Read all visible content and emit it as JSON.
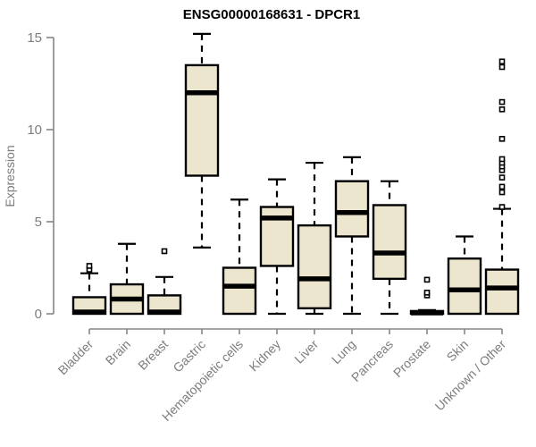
{
  "chart_data": {
    "type": "boxplot",
    "title": "ENSG00000168631 - DPCR1",
    "ylabel": "Expression",
    "xlabel": "",
    "ylim": [
      0,
      15
    ],
    "yticks": [
      0,
      5,
      10,
      15
    ],
    "grid": false,
    "legend": "none",
    "categories": [
      "Bladder",
      "Brain",
      "Breast",
      "Gastric",
      "Hematopoietic cells",
      "Kidney",
      "Liver",
      "Lung",
      "Pancreas",
      "Prostate",
      "Skin",
      "Unknown / Other"
    ],
    "series": [
      {
        "name": "Bladder",
        "whisker_low": 0,
        "q1": 0,
        "median": 0.1,
        "q3": 0.9,
        "whisker_high": 2.2,
        "outliers": [
          2.4,
          2.6
        ]
      },
      {
        "name": "Brain",
        "whisker_low": 0,
        "q1": 0,
        "median": 0.8,
        "q3": 1.6,
        "whisker_high": 3.8,
        "outliers": []
      },
      {
        "name": "Breast",
        "whisker_low": 0,
        "q1": 0,
        "median": 0.1,
        "q3": 1.0,
        "whisker_high": 2.0,
        "outliers": [
          3.4
        ]
      },
      {
        "name": "Gastric",
        "whisker_low": 3.6,
        "q1": 7.5,
        "median": 12.0,
        "q3": 13.5,
        "whisker_high": 15.2,
        "outliers": []
      },
      {
        "name": "Hematopoietic cells",
        "whisker_low": 0,
        "q1": 0,
        "median": 1.5,
        "q3": 2.5,
        "whisker_high": 6.2,
        "outliers": []
      },
      {
        "name": "Kidney",
        "whisker_low": 0,
        "q1": 2.6,
        "median": 5.2,
        "q3": 5.8,
        "whisker_high": 7.3,
        "outliers": []
      },
      {
        "name": "Liver",
        "whisker_low": 0,
        "q1": 0.3,
        "median": 1.9,
        "q3": 4.8,
        "whisker_high": 8.2,
        "outliers": []
      },
      {
        "name": "Lung",
        "whisker_low": 0,
        "q1": 4.2,
        "median": 5.5,
        "q3": 7.2,
        "whisker_high": 8.5,
        "outliers": []
      },
      {
        "name": "Pancreas",
        "whisker_low": 0,
        "q1": 1.9,
        "median": 3.3,
        "q3": 5.9,
        "whisker_high": 7.2,
        "outliers": []
      },
      {
        "name": "Prostate",
        "whisker_low": 0,
        "q1": 0,
        "median": 0.05,
        "q3": 0.15,
        "whisker_high": 0.2,
        "outliers": [
          1.0,
          1.15,
          1.85
        ]
      },
      {
        "name": "Skin",
        "whisker_low": 0,
        "q1": 0,
        "median": 1.3,
        "q3": 3.0,
        "whisker_high": 4.2,
        "outliers": []
      },
      {
        "name": "Unknown / Other",
        "whisker_low": 0,
        "q1": 0,
        "median": 1.4,
        "q3": 2.4,
        "whisker_high": 5.7,
        "outliers": [
          5.8,
          6.6,
          6.9,
          7.4,
          7.8,
          8.0,
          8.2,
          8.4,
          9.5,
          11.1,
          11.5,
          13.4,
          13.7
        ]
      }
    ],
    "colors": {
      "box_fill": "#ede6ce",
      "box_border": "#000000",
      "median": "#000000",
      "whisker": "#000000",
      "outlier_stroke": "#000000",
      "axis_line": "#858585",
      "axis_text": "#7d7d7d",
      "title_text": "#000000",
      "background": "#ffffff"
    }
  }
}
